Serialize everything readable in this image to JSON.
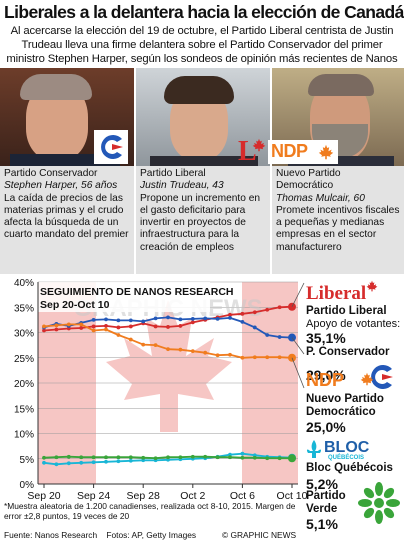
{
  "title": "Liberales a la delantera hacia la elección de Canadá",
  "intro": "Al acercarse la elección del 19 de octubre, el Partido Liberal centrista de Justin Trudeau lleva una firme delantera sobre el Partido Conservador del primer ministro Stephen Harper, según los sondeos de opinión más recientes de Nanos Research*",
  "panels": [
    {
      "party": "Partido Conservador",
      "leader": "Stephen Harper, 56 años",
      "desc": "La caída de precios de las materias primas y el crudo afecta la búsqueda de un cuarto mandato del premier",
      "logo": "C"
    },
    {
      "party": "Partido Liberal",
      "leader": "Justin Trudeau, 43",
      "desc": "Propone un incremento en el gasto deficitario para invertir en proyectos de infraestructura para la creación de empleos",
      "logo": "L"
    },
    {
      "party": "Nuevo Partido Democrático",
      "leader": "Thomas Mulcair, 60",
      "desc": "Promete incentivos fiscales a pequeñas y medianas empresas en el sector manufacturero",
      "logo": "NDP"
    }
  ],
  "chart_label": "SEGUIMIENTO DE NANOS RESEARCH",
  "chart_dates": "Sep 20-Oct 10",
  "watermark": "GRAPHIC NEWS",
  "legend": {
    "liberal_logo": "Liberal",
    "liberal_name": "Partido Liberal",
    "liberal_sub": "Apoyo de votantes:",
    "liberal_val": "35,1%",
    "conservative_name": "P. Conservador",
    "conservative_val": "29,0%",
    "ndp_logo": "NDP",
    "ndp_name": "Nuevo Partido Democrático",
    "ndp_val": "25,0%",
    "bloc_logo": "BLOC",
    "bloc_logo_sub": "QUÉBÉCOIS",
    "bloc_name": "Bloc Québécois",
    "bloc_val": "5,2%",
    "green_name": "Partido Verde",
    "green_val": "5,1%"
  },
  "footnote": "*Muestra aleatoria de 1.200 canadienses, realizada oct 8-10, 2015. Margen de error ±2,8 puntos, 19 veces de 20",
  "source": "Fuente: Nanos Research    Fotos: AP, Getty Images",
  "credit": "© GRAPHIC NEWS",
  "colors": {
    "liberal": "#d62c2c",
    "conservative": "#2358b8",
    "ndp": "#f07c1e",
    "bloc": "#19b6d6",
    "green": "#3aa53a"
  },
  "chart_data": {
    "type": "line",
    "title": "SEGUIMIENTO DE NANOS RESEARCH",
    "subtitle": "Sep 20-Oct 10",
    "xticks": [
      "Sep 20",
      "Sep 24",
      "Sep 28",
      "Oct 2",
      "Oct 6",
      "Oct 10"
    ],
    "yticks": [
      "0%",
      "5%",
      "10%",
      "15%",
      "20%",
      "25%",
      "30%",
      "35%",
      "40%"
    ],
    "ylim": [
      0,
      40
    ],
    "x_days": 21,
    "series": [
      {
        "name": "Partido Liberal",
        "color": "#d62c2c",
        "values": [
          30.4,
          30.6,
          30.8,
          30.9,
          31.2,
          31.3,
          31.0,
          31.2,
          31.8,
          31.2,
          31.1,
          31.3,
          32.0,
          32.5,
          33.0,
          33.5,
          33.7,
          34.0,
          34.5,
          35.0,
          35.1
        ]
      },
      {
        "name": "P. Conservador",
        "color": "#2358b8",
        "values": [
          31.0,
          31.7,
          31.3,
          31.9,
          32.5,
          32.6,
          32.4,
          32.4,
          32.2,
          32.8,
          33.0,
          32.6,
          32.7,
          32.8,
          32.7,
          32.9,
          32.1,
          31.0,
          29.5,
          29.1,
          29.0
        ]
      },
      {
        "name": "Nuevo Partido Democrático",
        "color": "#f07c1e",
        "values": [
          31.2,
          31.4,
          31.6,
          31.6,
          30.4,
          30.6,
          29.5,
          28.6,
          27.6,
          27.5,
          26.7,
          26.6,
          26.3,
          26.0,
          25.5,
          25.6,
          25.0,
          25.1,
          25.1,
          25.1,
          25.0
        ]
      },
      {
        "name": "Bloc Québécois",
        "color": "#19b6d6",
        "values": [
          4.2,
          3.9,
          4.1,
          4.2,
          4.3,
          4.4,
          4.5,
          4.6,
          4.7,
          4.7,
          4.8,
          4.9,
          5.0,
          5.1,
          5.4,
          5.8,
          6.0,
          5.7,
          5.4,
          5.3,
          5.2
        ]
      },
      {
        "name": "Partido Verde",
        "color": "#3aa53a",
        "values": [
          5.2,
          5.3,
          5.4,
          5.3,
          5.3,
          5.3,
          5.3,
          5.3,
          5.2,
          5.1,
          5.3,
          5.3,
          5.4,
          5.4,
          5.3,
          5.3,
          5.2,
          5.2,
          5.1,
          5.1,
          5.1
        ]
      }
    ]
  }
}
